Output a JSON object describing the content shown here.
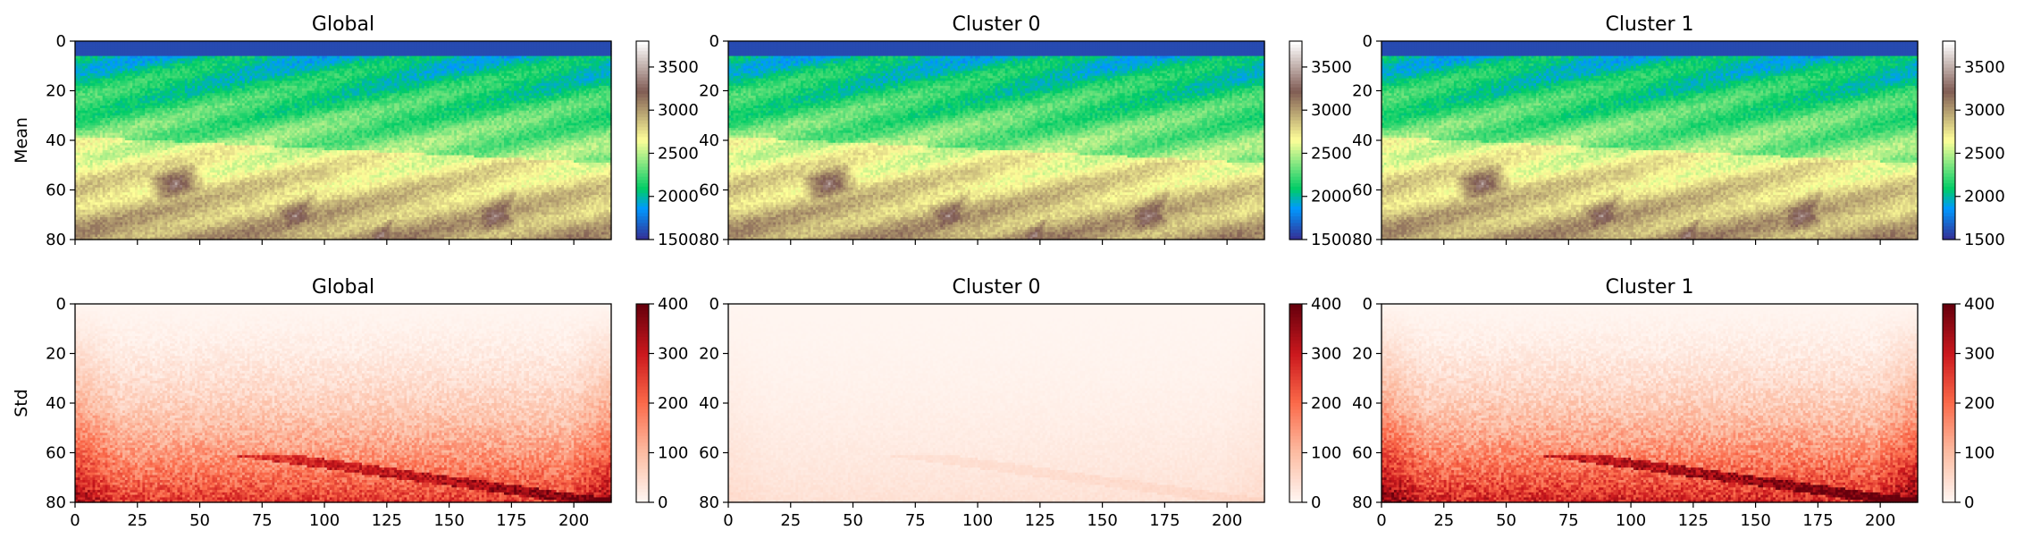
{
  "chart_data": [
    {
      "type": "heatmap",
      "row": "mean",
      "title": "Global",
      "ylabel": "Mean",
      "xlim": [
        0,
        215
      ],
      "ylim": [
        80,
        0
      ],
      "xticks": [],
      "yticks": [
        0,
        20,
        40,
        60,
        80
      ],
      "colormap": "terrain",
      "clim": [
        1500,
        3800
      ],
      "colorbar_ticks": [
        1500,
        2000,
        2500,
        3000,
        3500
      ]
    },
    {
      "type": "heatmap",
      "row": "mean",
      "title": "Cluster 0",
      "ylabel": "",
      "xlim": [
        0,
        215
      ],
      "ylim": [
        80,
        0
      ],
      "xticks": [],
      "yticks": [
        0,
        20,
        40,
        60,
        80
      ],
      "colormap": "terrain",
      "clim": [
        1500,
        3800
      ],
      "colorbar_ticks": [
        1500,
        2000,
        2500,
        3000,
        3500
      ]
    },
    {
      "type": "heatmap",
      "row": "mean",
      "title": "Cluster 1",
      "ylabel": "",
      "xlim": [
        0,
        215
      ],
      "ylim": [
        80,
        0
      ],
      "xticks": [],
      "yticks": [
        0,
        20,
        40,
        60,
        80
      ],
      "colormap": "terrain",
      "clim": [
        1500,
        3800
      ],
      "colorbar_ticks": [
        1500,
        2000,
        2500,
        3000,
        3500
      ]
    },
    {
      "type": "heatmap",
      "row": "std",
      "title": "Global",
      "ylabel": "Std",
      "xlim": [
        0,
        215
      ],
      "ylim": [
        80,
        0
      ],
      "xticks": [
        0,
        25,
        50,
        75,
        100,
        125,
        150,
        175,
        200
      ],
      "yticks": [
        0,
        20,
        40,
        60,
        80
      ],
      "colormap": "Reds",
      "clim": [
        0,
        400
      ],
      "intensity": 0.9,
      "colorbar_ticks": [
        0,
        100,
        200,
        300,
        400
      ]
    },
    {
      "type": "heatmap",
      "row": "std",
      "title": "Cluster 0",
      "ylabel": "",
      "xlim": [
        0,
        215
      ],
      "ylim": [
        80,
        0
      ],
      "xticks": [
        0,
        25,
        50,
        75,
        100,
        125,
        150,
        175,
        200
      ],
      "yticks": [
        0,
        20,
        40,
        60,
        80
      ],
      "colormap": "Reds",
      "clim": [
        0,
        400
      ],
      "intensity": 0.12,
      "colorbar_ticks": [
        0,
        100,
        200,
        300,
        400
      ]
    },
    {
      "type": "heatmap",
      "row": "std",
      "title": "Cluster 1",
      "ylabel": "",
      "xlim": [
        0,
        215
      ],
      "ylim": [
        80,
        0
      ],
      "xticks": [
        0,
        25,
        50,
        75,
        100,
        125,
        150,
        175,
        200
      ],
      "yticks": [
        0,
        20,
        40,
        60,
        80
      ],
      "colormap": "Reds",
      "clim": [
        0,
        400
      ],
      "intensity": 1.0,
      "colorbar_ticks": [
        0,
        100,
        200,
        300,
        400
      ]
    }
  ]
}
